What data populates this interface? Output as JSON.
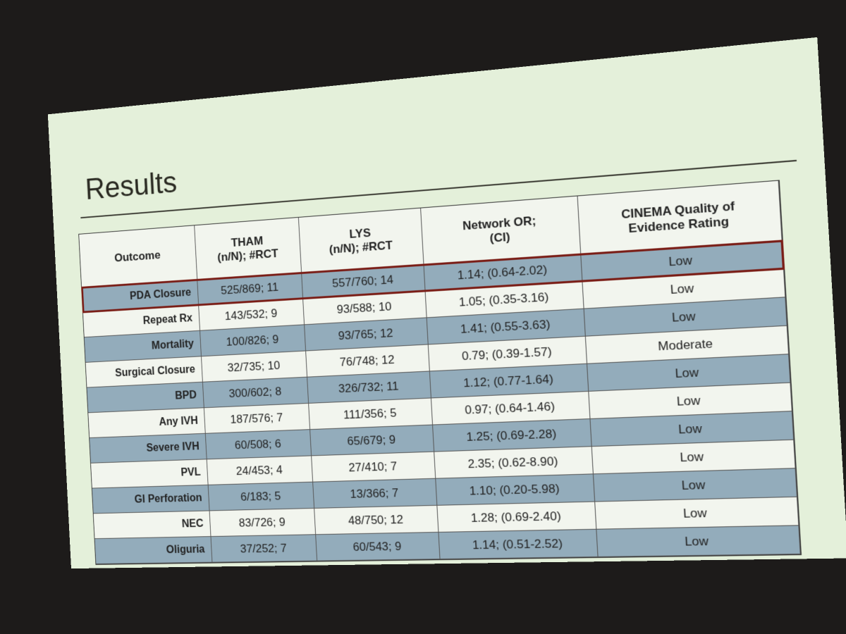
{
  "slide": {
    "title": "Results",
    "table": {
      "header": [
        [
          "Outcome"
        ],
        [
          "THAM",
          "(n/N); #RCT"
        ],
        [
          "LYS",
          "(n/N); #RCT"
        ],
        [
          "Network OR;",
          "(CI)"
        ],
        [
          "CINEMA Quality of",
          "Evidence Rating"
        ]
      ],
      "rows": [
        [
          "PDA Closure",
          "525/869; 11",
          "557/760; 14",
          "1.14; (0.64-2.02)",
          "Low"
        ],
        [
          "Repeat Rx",
          "143/532; 9",
          "93/588; 10",
          "1.05; (0.35-3.16)",
          "Low"
        ],
        [
          "Mortality",
          "100/826; 9",
          "93/765; 12",
          "1.41; (0.55-3.63)",
          "Low"
        ],
        [
          "Surgical Closure",
          "32/735; 10",
          "76/748; 12",
          "0.79; (0.39-1.57)",
          "Moderate"
        ],
        [
          "BPD",
          "300/602; 8",
          "326/732; 11",
          "1.12; (0.77-1.64)",
          "Low"
        ],
        [
          "Any IVH",
          "187/576; 7",
          "111/356; 5",
          "0.97; (0.64-1.46)",
          "Low"
        ],
        [
          "Severe IVH",
          "60/508; 6",
          "65/679; 9",
          "1.25; (0.69-2.28)",
          "Low"
        ],
        [
          "PVL",
          "24/453; 4",
          "27/410; 7",
          "2.35; (0.62-8.90)",
          "Low"
        ],
        [
          "GI Perforation",
          "6/183; 5",
          "13/366; 7",
          "1.10; (0.20-5.98)",
          "Low"
        ],
        [
          "NEC",
          "83/726; 9",
          "48/750; 12",
          "1.28; (0.69-2.40)",
          "Low"
        ],
        [
          "Oliguria",
          "37/252; 7",
          "60/543; 9",
          "1.14; (0.51-2.52)",
          "Low"
        ]
      ]
    }
  }
}
